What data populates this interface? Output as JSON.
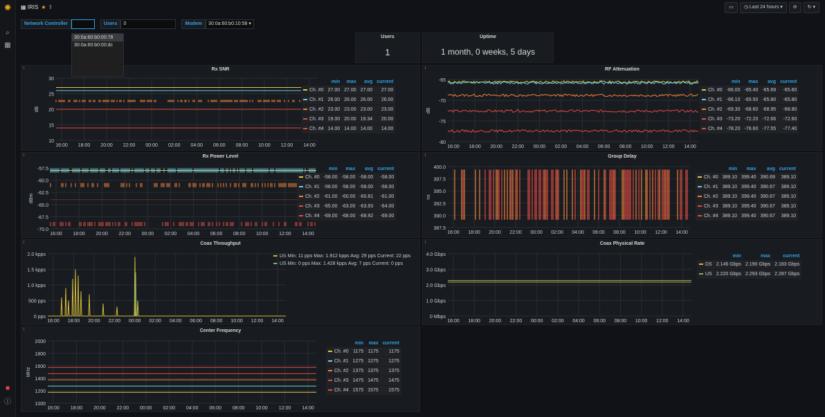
{
  "app": {
    "title": "IRIS",
    "time_range": "Last 24 hours"
  },
  "sidebar": {
    "icons": [
      "grafana-logo-icon",
      "search-icon",
      "dashboards-icon",
      "user-avatar-icon",
      "help-icon"
    ]
  },
  "variables": {
    "network_controller": {
      "label": "Network Controller",
      "value": ""
    },
    "users": {
      "label": "Users",
      "value": "0"
    },
    "modem": {
      "label": "Modem",
      "value": "30:0a:60:b0:10:58 ▾"
    },
    "dropdown_options": [
      "30:0a:60:b0:00:78",
      "30:0a:60:b0:00:dc"
    ]
  },
  "colors": {
    "ch0": "#e0c94a",
    "ch1": "#6ed0e0",
    "ch2": "#ef843c",
    "ch3": "#e24d42",
    "ch4": "#e24d42",
    "ds": "#d4b939",
    "us": "#7eb26d"
  },
  "stats": {
    "users": {
      "title": "Users",
      "value": "1"
    },
    "uptime": {
      "title": "Uptime",
      "value": "1 month, 0 weeks, 5 days"
    }
  },
  "time_ticks": [
    "16:00",
    "18:00",
    "20:00",
    "22:00",
    "00:00",
    "02:00",
    "04:00",
    "06:00",
    "08:00",
    "10:00",
    "12:00",
    "14:00"
  ],
  "panels": {
    "rx_snr": {
      "title": "Rx SNR",
      "ylabel": "dB",
      "yticks": [
        "30",
        "25",
        "20",
        "15",
        "10"
      ],
      "headers": [
        "min",
        "max",
        "avg",
        "current"
      ],
      "rows": [
        [
          "Ch. #0",
          "27.00",
          "27.00",
          "27.00",
          "27.00"
        ],
        [
          "Ch. #1",
          "26.00",
          "26.00",
          "26.00",
          "26.00"
        ],
        [
          "Ch. #2",
          "23.00",
          "23.00",
          "23.00",
          "23.00"
        ],
        [
          "Ch. #3",
          "19.00",
          "20.00",
          "19.34",
          "20.00"
        ],
        [
          "Ch. #4",
          "14.00",
          "14.00",
          "14.00",
          "14.00"
        ]
      ]
    },
    "rf_atten": {
      "title": "RF Attenuation",
      "ylabel": "dB",
      "yticks": [
        "-65",
        "-70",
        "-75",
        "-80"
      ],
      "headers": [
        "min",
        "max",
        "avg",
        "current"
      ],
      "rows": [
        [
          "Ch. #0",
          "-66.00",
          "-65.40",
          "-65.69",
          "-65.60"
        ],
        [
          "Ch. #1",
          "-66.10",
          "-65.50",
          "-65.80",
          "-65.80"
        ],
        [
          "Ch. #2",
          "-69.30",
          "-68.60",
          "-68.95",
          "-68.80"
        ],
        [
          "Ch. #3",
          "-73.20",
          "-72.20",
          "-72.66",
          "-72.60"
        ],
        [
          "Ch. #4",
          "-78.20",
          "-76.60",
          "-77.55",
          "-77.40"
        ]
      ]
    },
    "rx_power": {
      "title": "Rx Power Level",
      "ylabel": "dBm",
      "yticks": [
        "-57.5",
        "-60.0",
        "-62.5",
        "-65.0",
        "-67.5",
        "-70.0"
      ],
      "headers": [
        "min",
        "max",
        "avg",
        "current"
      ],
      "rows": [
        [
          "Ch. #0",
          "-58.00",
          "-58.00",
          "-58.00",
          "-58.00"
        ],
        [
          "Ch. #1",
          "-58.00",
          "-58.00",
          "-58.00",
          "-58.00"
        ],
        [
          "Ch. #2",
          "-61.00",
          "-60.00",
          "-60.81",
          "-61.00"
        ],
        [
          "Ch. #3",
          "-65.00",
          "-63.00",
          "-63.93",
          "-64.00"
        ],
        [
          "Ch. #4",
          "-69.00",
          "-68.00",
          "-68.92",
          "-69.00"
        ]
      ]
    },
    "group_delay": {
      "title": "Group Delay",
      "ylabel": "ns",
      "yticks": [
        "400.0",
        "397.5",
        "395.0",
        "392.5",
        "390.0",
        "387.5"
      ],
      "headers": [
        "min",
        "max",
        "avg",
        "current"
      ],
      "rows": [
        [
          "Ch. #0",
          "389.10",
          "399.40",
          "390.69",
          "389.10"
        ],
        [
          "Ch. #1",
          "389.10",
          "399.40",
          "390.67",
          "389.10"
        ],
        [
          "Ch. #2",
          "389.10",
          "399.40",
          "390.67",
          "389.10"
        ],
        [
          "Ch. #3",
          "389.10",
          "399.40",
          "390.67",
          "389.10"
        ],
        [
          "Ch. #4",
          "389.10",
          "399.40",
          "390.67",
          "389.10"
        ]
      ]
    },
    "coax_throughput": {
      "title": "Coax Throughput",
      "yticks": [
        "2.0 kpps",
        "1.5 kpps",
        "1.0 kpps",
        "500 pps",
        "0 pps"
      ],
      "legend": [
        "DS Min: 11 pps Max: 1.912 kpps Avg: 29 pps Current: 22 pps",
        "US Min: 0 pps Max: 1.428 kpps Avg: 7 pps Current: 0 pps"
      ]
    },
    "coax_phys": {
      "title": "Coax Physical Rate",
      "yticks": [
        "4.0 Gbps",
        "3.0 Gbps",
        "2.0 Gbps",
        "1.0 Gbps",
        "0 Mbps"
      ],
      "headers": [
        "min",
        "max",
        "current"
      ],
      "rows": [
        [
          "DS",
          "2.146 Gbps",
          "2.190 Gbps",
          "2.183 Gbps"
        ],
        [
          "US",
          "2.220 Gbps",
          "2.293 Gbps",
          "2.287 Gbps"
        ]
      ]
    },
    "center_freq": {
      "title": "Center Frequency",
      "ylabel": "MHz",
      "yticks": [
        "2000",
        "1800",
        "1600",
        "1400",
        "1200",
        "1000"
      ],
      "headers": [
        "min",
        "max",
        "current"
      ],
      "rows": [
        [
          "Ch. #0",
          "1175",
          "1175",
          "1175"
        ],
        [
          "Ch. #1",
          "1275",
          "1275",
          "1275"
        ],
        [
          "Ch. #2",
          "1375",
          "1375",
          "1375"
        ],
        [
          "Ch. #3",
          "1475",
          "1475",
          "1475"
        ],
        [
          "Ch. #4",
          "1575",
          "1575",
          "1575"
        ]
      ]
    }
  }
}
